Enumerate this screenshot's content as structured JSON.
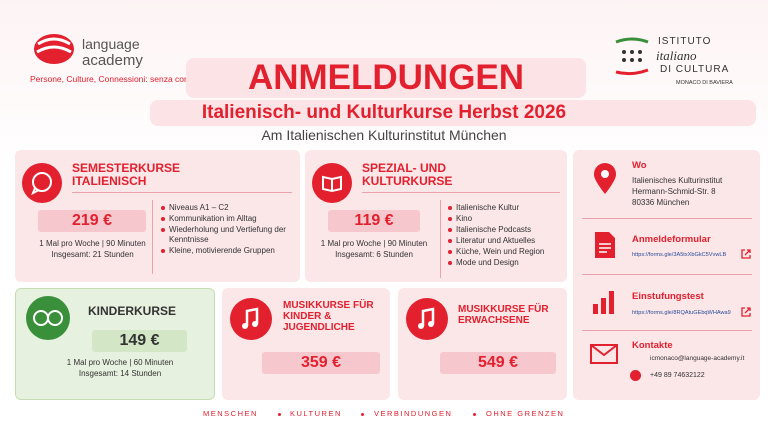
{
  "logo": {
    "brand_line1": "language",
    "brand_line2": "academy",
    "tagline": "Persone, Culture, Connessioni: senza confini"
  },
  "partner": {
    "line1": "ISTITUTO",
    "line2": "italiano",
    "line3": "DI CULTURA",
    "line4": "MONACO DI BAVIERA"
  },
  "header": {
    "title": "ANMELDUNGEN",
    "subtitle": "Italienisch- und Kulturkurse Herbst 2026",
    "location": "Am Italienischen Kulturinstitut München"
  },
  "courses": [
    {
      "title": "SEMESTERKURSE ITALIENISCH",
      "price": "219 €",
      "schedule": "1 Mal pro Woche | 90 Minuten",
      "total": "Insgesamt: 21 Stunden",
      "features": [
        "Niveaus A1 – C2",
        "Kommunikation im Alltag",
        "Wiederholung und Vertiefung der Kenntnisse",
        "Kleine, motivierende Gruppen"
      ]
    },
    {
      "title": "SPEZIAL- UND KULTURKURSE",
      "price": "119 €",
      "schedule": "1 Mal pro Woche | 90 Minuten",
      "total": "Insgesamt: 6 Stunden",
      "features": [
        "Italienische Kultur",
        "Kino",
        "Italienische Podcasts",
        "Literatur und Aktuelles",
        "Küche, Wein und Region",
        "Mode und Design"
      ]
    },
    {
      "title": "KINDERKURSE",
      "price": "149 €",
      "schedule": "1 Mal pro Woche | 60 Minuten",
      "total": "Insgesamt: 14 Stunden"
    },
    {
      "title": "MUSIKKURSE FÜR KINDER & JUGENDLICHE",
      "price": "359 €"
    },
    {
      "title": "MUSIKKURSE FÜR ERWACHSENE",
      "price": "549 €"
    }
  ],
  "info": {
    "where": {
      "heading": "Wo",
      "lines": [
        "Italienisches Kulturinstitut",
        "Hermann-Schmid-Str. 8",
        "80336 München"
      ]
    },
    "registration": {
      "heading": "Anmeldeformular",
      "link": "https://forms.gle/3A5txXbGkC5VvwLB"
    },
    "placement": {
      "heading": "Einstufungstest",
      "link": "https://forms.gle/8RQAtuGEbqWHAwa9"
    },
    "contacts": {
      "heading": "Kontakte",
      "email": "icmonaco@language-academy.it",
      "phone": "+49 89 74632122"
    }
  },
  "footer": [
    "MENSCHEN",
    "KULTUREN",
    "VERBINDUNGEN",
    "OHNE GRENZEN"
  ]
}
